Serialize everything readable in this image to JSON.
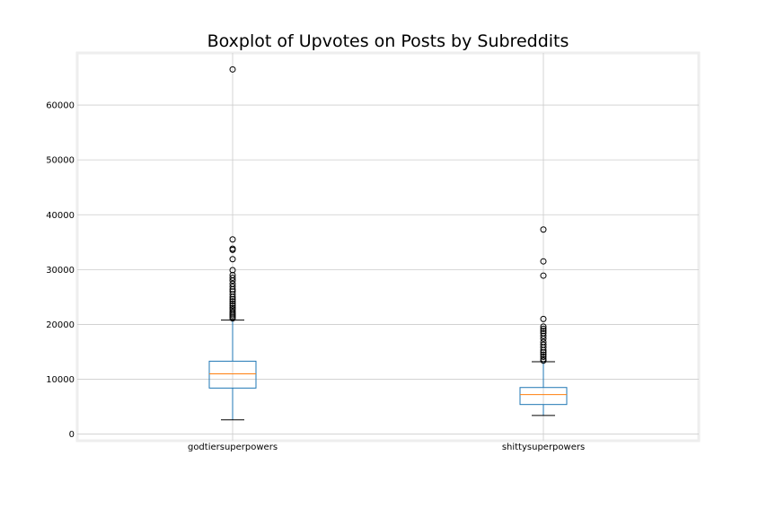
{
  "chart_data": {
    "type": "boxplot",
    "title": "Boxplot of Upvotes on Posts by Subreddits",
    "xlabel": "",
    "ylabel": "",
    "categories": [
      "godtiersuperpowers",
      "shittysuperpowers"
    ],
    "ylim": [
      -1200,
      69500
    ],
    "yticks": [
      0,
      10000,
      20000,
      30000,
      40000,
      50000,
      60000
    ],
    "grid": true,
    "colors": {
      "box": "#1f77b4",
      "median": "#ff7f0e",
      "whisker": "#1f77b4",
      "cap": "#000000",
      "flier": "#000000",
      "grid": "#cccccc",
      "frame": "#eeeeee"
    },
    "series": [
      {
        "whisker_low": 2600,
        "q1": 8400,
        "median": 11000,
        "q3": 13300,
        "whisker_high": 20800,
        "fliers": [
          66500,
          35500,
          33800,
          33600,
          31900,
          29900,
          29000,
          28500,
          28000,
          27400,
          26900,
          26400,
          26000,
          25500,
          25000,
          24600,
          24200,
          23800,
          23400,
          23000,
          22700,
          22300,
          22000,
          21700,
          21400,
          21100
        ]
      },
      {
        "whisker_low": 3400,
        "q1": 5400,
        "median": 7200,
        "q3": 8500,
        "whisker_high": 13200,
        "fliers": [
          37300,
          31500,
          28900,
          21000,
          19600,
          19200,
          18800,
          18400,
          17900,
          17400,
          16800,
          16300,
          15800,
          15300,
          14900,
          14500,
          14100,
          13700,
          13400
        ]
      }
    ]
  }
}
